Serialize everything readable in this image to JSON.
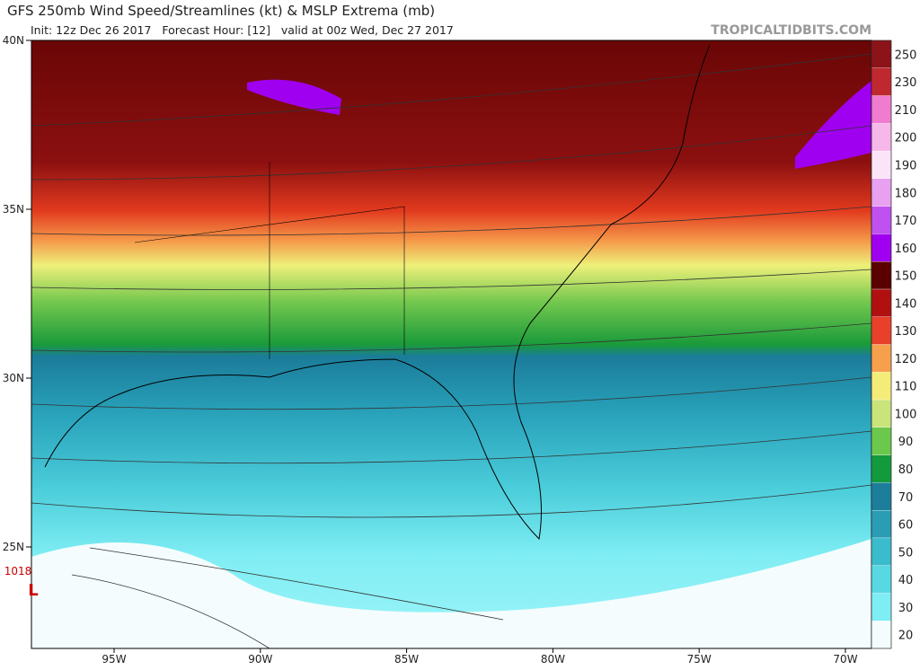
{
  "header": {
    "title": "GFS 250mb Wind Speed/Streamlines (kt) & MSLP Extrema (mb)",
    "subtitle": "Init: 12z Dec 26 2017   Forecast Hour: [12]   valid at 00z Wed, Dec 27 2017",
    "watermark": "TROPICALTIDBITS.COM"
  },
  "map": {
    "lat_labels": [
      "40N",
      "35N",
      "30N",
      "25N"
    ],
    "lon_labels": [
      "95W",
      "90W",
      "85W",
      "80W",
      "75W",
      "70W"
    ],
    "pressure_extrema": [
      {
        "value": "1018",
        "symbol": "L"
      }
    ]
  },
  "colorbar": {
    "ticks": [
      20,
      30,
      40,
      50,
      60,
      70,
      80,
      90,
      100,
      110,
      120,
      130,
      140,
      150,
      160,
      170,
      180,
      190,
      200,
      210,
      230,
      250
    ],
    "colors": [
      "#f4fcfd",
      "#7eeef4",
      "#58d8e2",
      "#3bbccc",
      "#2a9cb4",
      "#1c7e9a",
      "#139a3c",
      "#6cc84c",
      "#c8e47a",
      "#f4ec78",
      "#f6a04e",
      "#e8402a",
      "#b01010",
      "#5a0000",
      "#a000f0",
      "#c050f0",
      "#e8a0f0",
      "#fce4f8",
      "#f6b8e8",
      "#f07cd0",
      "#c02830",
      "#8c1418"
    ]
  }
}
